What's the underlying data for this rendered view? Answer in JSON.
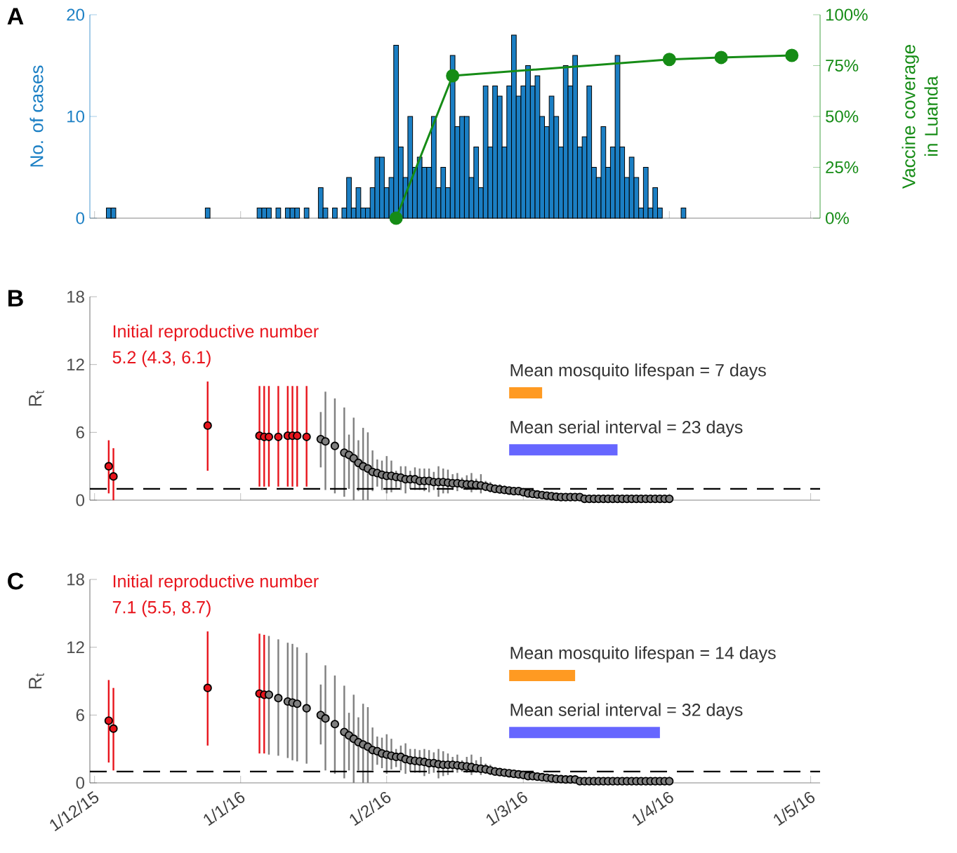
{
  "chart_data": [
    {
      "type": "bar",
      "title": "A",
      "ylabel": "No. of cases",
      "y2label": "Vaccine coverage in Luanda",
      "marker": "circle",
      "tick_labels": "y",
      "xlim": [
        "2015-11-30",
        "2016-05-03"
      ],
      "xticks": [
        {
          "value": "2015-12-01",
          "label": null
        },
        {
          "value": "2016-01-01",
          "label": null
        },
        {
          "value": "2016-02-01",
          "label": null
        },
        {
          "value": "2016-03-01",
          "label": null
        },
        {
          "value": "2016-04-01",
          "label": null
        },
        {
          "value": "2016-05-01",
          "label": null
        }
      ],
      "ylim": [
        0,
        20
      ],
      "yticks": [
        0,
        10,
        20
      ],
      "y2lim": [
        0,
        100
      ],
      "y2ticks": [
        {
          "value": 0,
          "label": "0%"
        },
        {
          "value": 25,
          "label": "25%"
        },
        {
          "value": 50,
          "label": "50%"
        },
        {
          "value": 75,
          "label": "75%"
        },
        {
          "value": 100,
          "label": "100%"
        }
      ],
      "series": [
        {
          "type": "bar",
          "color": "#1b7fc4",
          "x": [
            "2015-12-04",
            "2015-12-05",
            "2015-12-25",
            "2016-01-05",
            "2016-01-06",
            "2016-01-07",
            "2016-01-09",
            "2016-01-11",
            "2016-01-12",
            "2016-01-13",
            "2016-01-15",
            "2016-01-18",
            "2016-01-19",
            "2016-01-21",
            "2016-01-23",
            "2016-01-24",
            "2016-01-25",
            "2016-01-26",
            "2016-01-27",
            "2016-01-28",
            "2016-01-29",
            "2016-01-30",
            "2016-01-31",
            "2016-02-01",
            "2016-02-02",
            "2016-02-03",
            "2016-02-04",
            "2016-02-05",
            "2016-02-06",
            "2016-02-07",
            "2016-02-08",
            "2016-02-09",
            "2016-02-10",
            "2016-02-11",
            "2016-02-12",
            "2016-02-13",
            "2016-02-14",
            "2016-02-15",
            "2016-02-16",
            "2016-02-17",
            "2016-02-18",
            "2016-02-19",
            "2016-02-20",
            "2016-02-21",
            "2016-02-22",
            "2016-02-23",
            "2016-02-24",
            "2016-02-25",
            "2016-02-26",
            "2016-02-27",
            "2016-02-28",
            "2016-02-29",
            "2016-03-01",
            "2016-03-02",
            "2016-03-03",
            "2016-03-04",
            "2016-03-05",
            "2016-03-06",
            "2016-03-07",
            "2016-03-08",
            "2016-03-09",
            "2016-03-10",
            "2016-03-11",
            "2016-03-12",
            "2016-03-13",
            "2016-03-14",
            "2016-03-15",
            "2016-03-16",
            "2016-03-17",
            "2016-03-18",
            "2016-03-19",
            "2016-03-20",
            "2016-03-21",
            "2016-03-22",
            "2016-03-23",
            "2016-03-24",
            "2016-03-25",
            "2016-03-26",
            "2016-03-27",
            "2016-03-28",
            "2016-03-29",
            "2016-03-30",
            "2016-04-04"
          ],
          "values": [
            1,
            1,
            1,
            1,
            1,
            1,
            1,
            1,
            1,
            1,
            1,
            3,
            1,
            1,
            1,
            4,
            1,
            3,
            1,
            1,
            3,
            6,
            6,
            3,
            4,
            17,
            7,
            4,
            10,
            5,
            6,
            5,
            5,
            10,
            3,
            5,
            3,
            16,
            9,
            10,
            10,
            4,
            7,
            3,
            13,
            7,
            13,
            12,
            7,
            13,
            18,
            12,
            13,
            15,
            13,
            14,
            10,
            9,
            12,
            10,
            7,
            15,
            13,
            16,
            7,
            8,
            13,
            5,
            4,
            9,
            5,
            7,
            16,
            7,
            4,
            6,
            4,
            1,
            5,
            1,
            3,
            1,
            1
          ]
        },
        {
          "type": "line",
          "axis": "y2",
          "color": "#168c16",
          "x": [
            "2016-02-03",
            "2016-02-15",
            "2016-04-01",
            "2016-04-12",
            "2016-04-27"
          ],
          "values": [
            0,
            70,
            78,
            79,
            80
          ]
        }
      ]
    },
    {
      "type": "scatter",
      "title": "B",
      "ylabel": "R$_{t}$",
      "marker": "circle",
      "tick_labels": "y",
      "xlim": [
        "2015-11-30",
        "2016-05-03"
      ],
      "xticks": [
        {
          "value": "2015-12-01",
          "label": null
        },
        {
          "value": "2016-01-01",
          "label": null
        },
        {
          "value": "2016-02-01",
          "label": null
        },
        {
          "value": "2016-03-01",
          "label": null
        },
        {
          "value": "2016-04-01",
          "label": null
        },
        {
          "value": "2016-05-01",
          "label": null
        }
      ],
      "ylim": [
        0,
        18
      ],
      "yticks": [
        0,
        6,
        12,
        18
      ],
      "annotations": [
        "Initial reproductive number",
        "5.2 (4.3, 6.1)"
      ],
      "ref_lines": [
        {
          "axis": "y",
          "value": 1,
          "color": "#000000",
          "line_style": "dashed"
        }
      ],
      "bands": [
        {
          "axis": "x",
          "from": "2016-02-27",
          "to": "2016-03-05",
          "label": "Mean mosquito lifespan = 7 days",
          "color": "#ff9a22"
        },
        {
          "axis": "x",
          "from": "2016-02-27",
          "to": "2016-03-21",
          "label": "Mean serial interval = 23 days",
          "color": "#6666ff"
        }
      ],
      "series": [
        {
          "color": "#e8141c",
          "x": [
            "2015-12-04",
            "2015-12-05",
            "2015-12-25",
            "2016-01-05",
            "2016-01-06",
            "2016-01-07",
            "2016-01-09",
            "2016-01-11",
            "2016-01-12",
            "2016-01-13",
            "2016-01-15"
          ],
          "values": [
            3.0,
            2.1,
            6.6,
            5.7,
            5.6,
            5.6,
            5.6,
            5.7,
            5.7,
            5.7,
            5.6
          ],
          "errors": [
            [
              0.6,
              5.3
            ],
            [
              0,
              4.6
            ],
            [
              2.6,
              10.5
            ],
            [
              1.2,
              10.1
            ],
            [
              1.2,
              10.1
            ],
            [
              1.2,
              10.1
            ],
            [
              1.2,
              10.1
            ],
            [
              1.2,
              10.1
            ],
            [
              1.2,
              10.1
            ],
            [
              1.2,
              10.1
            ],
            [
              1.2,
              10.1
            ]
          ]
        },
        {
          "color": "#7f7f7f",
          "x": [
            "2016-01-18",
            "2016-01-19",
            "2016-01-21",
            "2016-01-23",
            "2016-01-24",
            "2016-01-25",
            "2016-01-26",
            "2016-01-27",
            "2016-01-28",
            "2016-01-29",
            "2016-01-30",
            "2016-01-31",
            "2016-02-01",
            "2016-02-02",
            "2016-02-03",
            "2016-02-04",
            "2016-02-05",
            "2016-02-06",
            "2016-02-07",
            "2016-02-08",
            "2016-02-09",
            "2016-02-10",
            "2016-02-11",
            "2016-02-12",
            "2016-02-13",
            "2016-02-14",
            "2016-02-15",
            "2016-02-16",
            "2016-02-17",
            "2016-02-18",
            "2016-02-19",
            "2016-02-20",
            "2016-02-21",
            "2016-02-22",
            "2016-02-23",
            "2016-02-24",
            "2016-02-25",
            "2016-02-26",
            "2016-02-27",
            "2016-02-28",
            "2016-02-29",
            "2016-03-01",
            "2016-03-02",
            "2016-03-03",
            "2016-03-04",
            "2016-03-05",
            "2016-03-06",
            "2016-03-07",
            "2016-03-08",
            "2016-03-09",
            "2016-03-10",
            "2016-03-11",
            "2016-03-12",
            "2016-03-13",
            "2016-03-14",
            "2016-03-15",
            "2016-03-16",
            "2016-03-17",
            "2016-03-18",
            "2016-03-19",
            "2016-03-20",
            "2016-03-21",
            "2016-03-22",
            "2016-03-23",
            "2016-03-24",
            "2016-03-25",
            "2016-03-26",
            "2016-03-27",
            "2016-03-28",
            "2016-03-29",
            "2016-03-30",
            "2016-03-31",
            "2016-04-01"
          ],
          "values": [
            5.4,
            5.2,
            4.8,
            4.2,
            4.0,
            3.7,
            3.3,
            3.0,
            2.8,
            2.5,
            2.4,
            2.25,
            2.15,
            2.15,
            2.05,
            2.0,
            1.85,
            1.85,
            1.85,
            1.7,
            1.7,
            1.7,
            1.6,
            1.6,
            1.6,
            1.55,
            1.5,
            1.5,
            1.45,
            1.4,
            1.4,
            1.35,
            1.3,
            1.2,
            1.1,
            1.0,
            0.95,
            0.9,
            0.85,
            0.8,
            0.8,
            0.7,
            0.6,
            0.55,
            0.5,
            0.45,
            0.4,
            0.35,
            0.3,
            0.27,
            0.27,
            0.27,
            0.27,
            0.27,
            0.12,
            0.12,
            0.12,
            0.12,
            0.12,
            0.12,
            0.12,
            0.12,
            0.12,
            0.12,
            0.12,
            0.12,
            0.12,
            0.12,
            0.12,
            0.12,
            0.12,
            0.12,
            0.12
          ],
          "errors": [
            [
              2.9,
              7.8
            ],
            [
              0.9,
              9.6
            ],
            [
              0.6,
              9.0
            ],
            [
              0.3,
              8.2
            ],
            [
              1.0,
              5.8
            ],
            [
              0,
              7.3
            ],
            [
              0.8,
              5.3
            ],
            [
              0,
              6.4
            ],
            [
              0,
              6.0
            ],
            [
              0.8,
              4.4
            ],
            [
              1.2,
              3.6
            ],
            [
              0.9,
              3.5
            ],
            [
              0.6,
              3.9
            ],
            [
              0.7,
              3.5
            ],
            [
              1.1,
              2.6
            ],
            [
              0.9,
              3.0
            ],
            [
              0.6,
              3.0
            ],
            [
              1.0,
              2.6
            ],
            [
              0.9,
              2.9
            ],
            [
              0.9,
              2.8
            ],
            [
              0.8,
              2.8
            ],
            [
              0.7,
              2.8
            ],
            [
              0.9,
              2.5
            ],
            [
              0.3,
              3.0
            ],
            [
              0.6,
              2.8
            ],
            [
              0.6,
              2.7
            ],
            [
              0.9,
              2.3
            ],
            [
              0.8,
              2.4
            ],
            [
              1.0,
              2.0
            ],
            [
              0.9,
              2.2
            ],
            [
              0.7,
              2.4
            ],
            [
              0.9,
              1.9
            ],
            [
              0.6,
              2.3
            ],
            [
              0.8,
              1.7
            ],
            [
              0.7,
              1.6
            ],
            [
              0.7,
              1.4
            ],
            [
              0.6,
              1.4
            ],
            [
              0.6,
              1.3
            ],
            [
              0.6,
              1.1
            ],
            null,
            null,
            null,
            null,
            null,
            null,
            null,
            null,
            null,
            null,
            null,
            null,
            null,
            null,
            null,
            null,
            null,
            null,
            null,
            null,
            null,
            null,
            null,
            null,
            null,
            null,
            null,
            null,
            null,
            null,
            null,
            null,
            null,
            null
          ]
        }
      ]
    },
    {
      "type": "scatter",
      "title": "C",
      "ylabel": "R$_{t}$",
      "marker": "circle",
      "xlim": [
        "2015-11-30",
        "2016-05-03"
      ],
      "xticks": [
        {
          "value": "2015-12-01",
          "label": "1/12/15"
        },
        {
          "value": "2016-01-01",
          "label": "1/1/16"
        },
        {
          "value": "2016-02-01",
          "label": "1/2/16"
        },
        {
          "value": "2016-03-01",
          "label": "1/3/16"
        },
        {
          "value": "2016-04-01",
          "label": "1/4/16"
        },
        {
          "value": "2016-05-01",
          "label": "1/5/16"
        }
      ],
      "ylim": [
        0,
        18
      ],
      "yticks": [
        0,
        6,
        12,
        18
      ],
      "annotations": [
        "Initial reproductive number",
        "7.1 (5.5, 8.7)"
      ],
      "ref_lines": [
        {
          "axis": "y",
          "value": 1,
          "color": "#000000",
          "line_style": "dashed"
        }
      ],
      "bands": [
        {
          "axis": "x",
          "from": "2016-02-27",
          "to": "2016-03-12",
          "label": "Mean mosquito lifespan = 14 days",
          "color": "#ff9a22"
        },
        {
          "axis": "x",
          "from": "2016-02-27",
          "to": "2016-03-30",
          "label": "Mean serial interval = 32 days",
          "color": "#6666ff"
        }
      ],
      "series": [
        {
          "color": "#e8141c",
          "x": [
            "2015-12-04",
            "2015-12-05",
            "2015-12-25",
            "2016-01-05",
            "2016-01-06"
          ],
          "values": [
            5.5,
            4.8,
            8.4,
            7.9,
            7.8
          ],
          "errors": [
            [
              1.8,
              9.1
            ],
            [
              1.1,
              8.4
            ],
            [
              3.3,
              13.4
            ],
            [
              2.6,
              13.2
            ],
            [
              2.6,
              13.1
            ]
          ]
        },
        {
          "color": "#7f7f7f",
          "x": [
            "2016-01-07",
            "2016-01-09",
            "2016-01-11",
            "2016-01-12",
            "2016-01-13",
            "2016-01-15",
            "2016-01-18",
            "2016-01-19",
            "2016-01-21",
            "2016-01-23",
            "2016-01-24",
            "2016-01-25",
            "2016-01-26",
            "2016-01-27",
            "2016-01-28",
            "2016-01-29",
            "2016-01-30",
            "2016-01-31",
            "2016-02-01",
            "2016-02-02",
            "2016-02-03",
            "2016-02-04",
            "2016-02-05",
            "2016-02-06",
            "2016-02-07",
            "2016-02-08",
            "2016-02-09",
            "2016-02-10",
            "2016-02-11",
            "2016-02-12",
            "2016-02-13",
            "2016-02-14",
            "2016-02-15",
            "2016-02-16",
            "2016-02-17",
            "2016-02-18",
            "2016-02-19",
            "2016-02-20",
            "2016-02-21",
            "2016-02-22",
            "2016-02-23",
            "2016-02-24",
            "2016-02-25",
            "2016-02-26",
            "2016-02-27",
            "2016-02-28",
            "2016-02-29",
            "2016-03-01",
            "2016-03-02",
            "2016-03-03",
            "2016-03-04",
            "2016-03-05",
            "2016-03-06",
            "2016-03-07",
            "2016-03-08",
            "2016-03-09",
            "2016-03-10",
            "2016-03-11",
            "2016-03-12",
            "2016-03-13",
            "2016-03-14",
            "2016-03-15",
            "2016-03-16",
            "2016-03-17",
            "2016-03-18",
            "2016-03-19",
            "2016-03-20",
            "2016-03-21",
            "2016-03-22",
            "2016-03-23",
            "2016-03-24",
            "2016-03-25",
            "2016-03-26",
            "2016-03-27",
            "2016-03-28",
            "2016-03-29",
            "2016-03-30",
            "2016-03-31",
            "2016-04-01"
          ],
          "values": [
            7.8,
            7.5,
            7.2,
            7.1,
            7.0,
            6.6,
            6.0,
            5.7,
            5.2,
            4.5,
            4.2,
            3.9,
            3.6,
            3.4,
            3.2,
            2.9,
            2.8,
            2.6,
            2.5,
            2.4,
            2.3,
            2.3,
            2.1,
            2.0,
            1.95,
            1.9,
            1.85,
            1.75,
            1.75,
            1.65,
            1.6,
            1.6,
            1.6,
            1.55,
            1.5,
            1.45,
            1.4,
            1.3,
            1.25,
            1.2,
            1.1,
            1.0,
            0.95,
            0.9,
            0.85,
            0.8,
            0.75,
            0.7,
            0.6,
            0.6,
            0.55,
            0.5,
            0.45,
            0.4,
            0.35,
            0.33,
            0.3,
            0.3,
            0.3,
            0.15,
            0.15,
            0.15,
            0.15,
            0.15,
            0.15,
            0.15,
            0.15,
            0.15,
            0.15,
            0.15,
            0.15,
            0.15,
            0.15,
            0.15,
            0.15,
            0.15,
            0.15,
            0.15,
            0.15
          ],
          "errors": [
            [
              2.5,
              13.0
            ],
            [
              2.4,
              12.7
            ],
            [
              2.2,
              12.4
            ],
            [
              2.0,
              12.3
            ],
            [
              1.9,
              12.0
            ],
            [
              1.7,
              11.5
            ],
            [
              3.4,
              8.7
            ],
            [
              1.1,
              10.4
            ],
            [
              0.8,
              9.5
            ],
            [
              0.4,
              8.6
            ],
            [
              1.1,
              6.2
            ],
            [
              0,
              7.8
            ],
            [
              1.1,
              5.8
            ],
            [
              0,
              7.0
            ],
            [
              0,
              6.7
            ],
            [
              1.1,
              4.9
            ],
            [
              1.6,
              4.1
            ],
            [
              1.3,
              4.0
            ],
            [
              0.8,
              4.3
            ],
            [
              1.2,
              3.9
            ],
            [
              1.4,
              3.0
            ],
            [
              1.1,
              3.3
            ],
            [
              0.8,
              3.5
            ],
            [
              1.0,
              3.0
            ],
            [
              0.9,
              3.0
            ],
            [
              0.9,
              2.9
            ],
            [
              0.6,
              3.0
            ],
            [
              0.8,
              2.9
            ],
            [
              0.9,
              2.7
            ],
            [
              0.4,
              3.0
            ],
            [
              0.6,
              2.8
            ],
            [
              0.7,
              2.6
            ],
            [
              1.0,
              2.3
            ],
            [
              0.9,
              2.5
            ],
            [
              1.0,
              2.0
            ],
            [
              0.9,
              2.3
            ],
            [
              0.7,
              2.5
            ],
            [
              0.9,
              2.0
            ],
            [
              0.7,
              2.3
            ],
            [
              0.8,
              1.7
            ],
            [
              0.7,
              1.6
            ],
            [
              0.7,
              1.4
            ],
            [
              0.7,
              1.3
            ],
            [
              0.6,
              1.2
            ],
            [
              0.6,
              1.1
            ],
            null,
            null,
            null,
            null,
            null,
            null,
            null,
            null,
            null,
            null,
            null,
            null,
            null,
            null,
            null,
            null,
            null,
            null,
            null,
            null,
            null,
            null,
            null,
            null,
            null,
            null,
            null,
            null,
            null,
            null,
            null,
            null,
            null,
            null
          ]
        }
      ]
    }
  ]
}
